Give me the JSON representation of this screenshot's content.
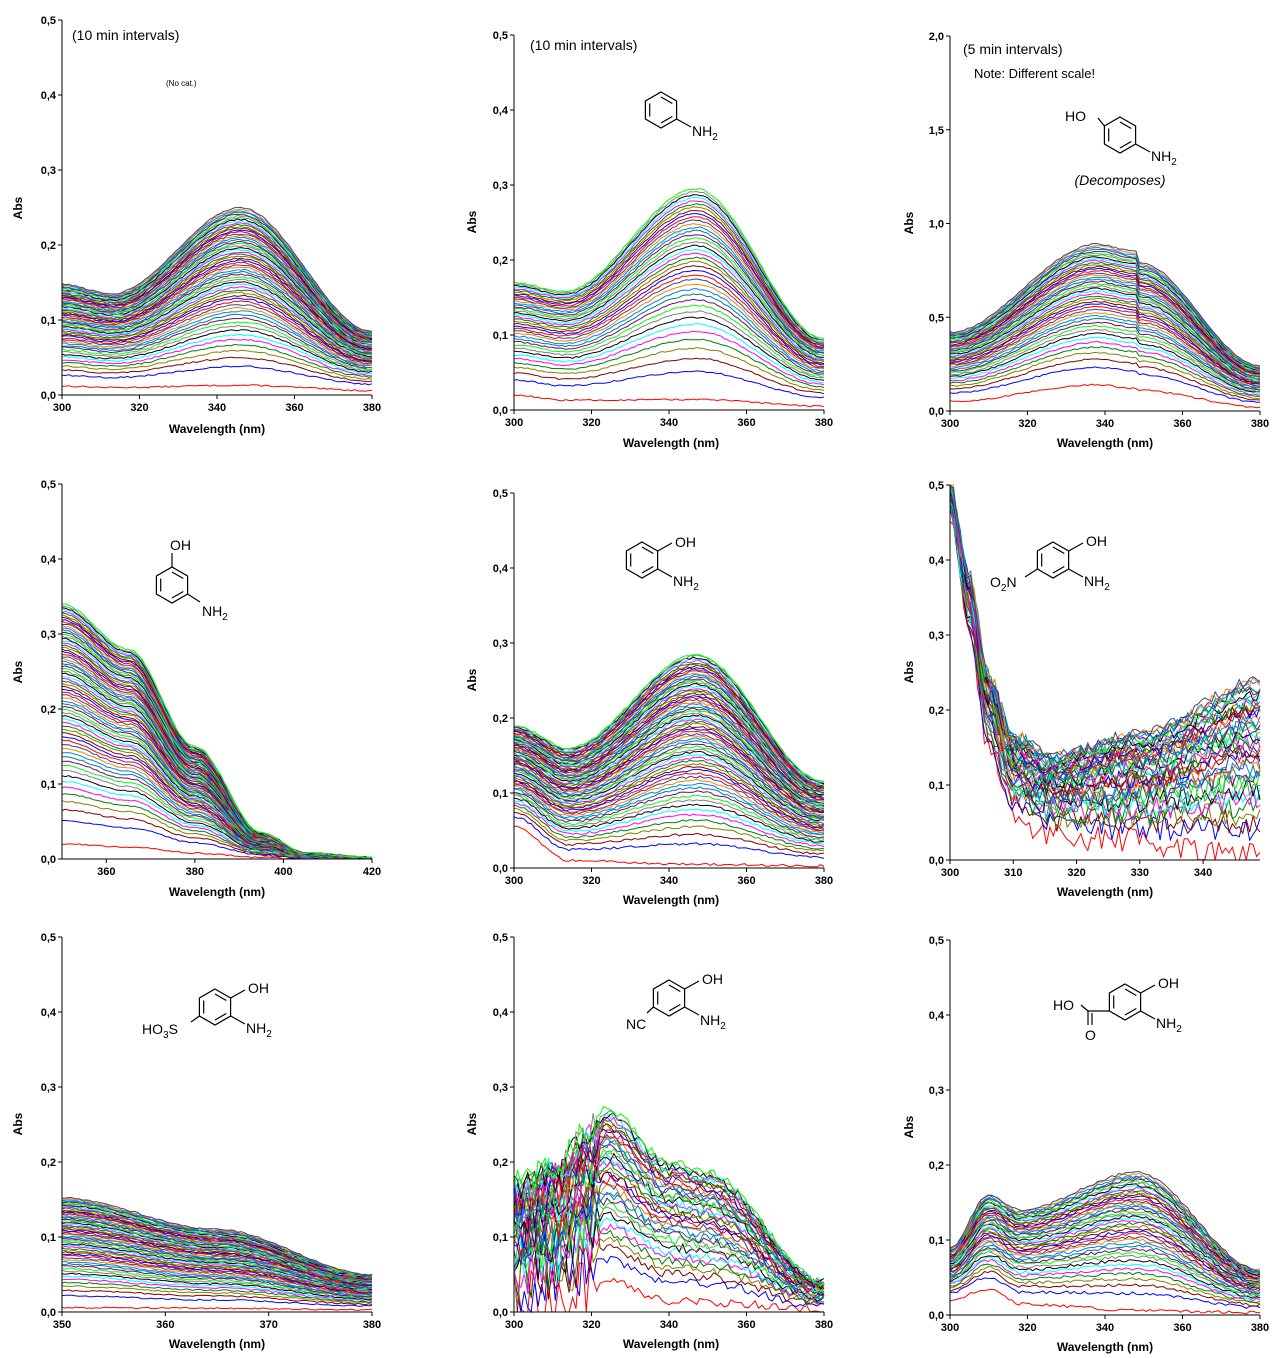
{
  "palette": [
    "#ff0000",
    "#0000ff",
    "#800000",
    "#808000",
    "#008000",
    "#ff00ff",
    "#00ffff",
    "#000000",
    "#808080",
    "#00ff00",
    "#800080",
    "#008080",
    "#0080ff",
    "#ff8000",
    "#404080"
  ],
  "chart_data": [
    {
      "type": "line",
      "panel": "spectra-0",
      "xlabel": "Wavelength (nm)",
      "ylabel": "Abs",
      "xlim": [
        300,
        380
      ],
      "ylim": [
        0,
        0.5
      ],
      "xticks": [
        300,
        320,
        340,
        360,
        380
      ],
      "xtick_labels": [
        "300",
        "320",
        "340",
        "360",
        "380"
      ],
      "yticks": [
        0,
        0.1,
        0.2,
        0.3,
        0.4,
        0.5
      ],
      "ytick_labels": [
        "0,0",
        "0,1",
        "0,2",
        "0,3",
        "0,4",
        "0,5"
      ],
      "notes": [
        "(10 min intervals)",
        "(No cat.)"
      ],
      "compound": "none",
      "series": {
        "count": 60,
        "shape": "peak",
        "x": [
          300,
          313,
          346,
          380
        ],
        "final": [
          0.148,
          0.135,
          0.25,
          0.085
        ],
        "first": [
          0.012,
          0.01,
          0.013,
          0.006
        ],
        "noise": 0.001
      }
    },
    {
      "type": "line",
      "panel": "spectra-1",
      "xlabel": "Wavelength (nm)",
      "ylabel": "Abs",
      "xlim": [
        300,
        380
      ],
      "ylim": [
        0,
        0.5
      ],
      "xticks": [
        300,
        320,
        340,
        360,
        380
      ],
      "xtick_labels": [
        "300",
        "320",
        "340",
        "360",
        "380"
      ],
      "yticks": [
        0,
        0.1,
        0.2,
        0.3,
        0.4,
        0.5
      ],
      "ytick_labels": [
        "0,0",
        "0,1",
        "0,2",
        "0,3",
        "0,4",
        "0,5"
      ],
      "notes": [
        "(10 min intervals)"
      ],
      "compound": "aniline",
      "series": {
        "count": 40,
        "shape": "peak",
        "x": [
          300,
          313,
          347,
          380
        ],
        "final": [
          0.17,
          0.158,
          0.295,
          0.095
        ],
        "first": [
          0.02,
          0.013,
          0.014,
          0.005
        ],
        "noise": 0.001
      }
    },
    {
      "type": "line",
      "panel": "spectra-2",
      "xlabel": "Wavelength (nm)",
      "ylabel": "Abs",
      "xlim": [
        300,
        380
      ],
      "ylim": [
        0,
        2.0
      ],
      "xticks": [
        300,
        320,
        340,
        360,
        380
      ],
      "xtick_labels": [
        "300",
        "320",
        "340",
        "360",
        "380"
      ],
      "yticks": [
        0,
        0.5,
        1.0,
        1.5,
        2.0
      ],
      "ytick_labels": [
        "0,0",
        "0,5",
        "1,0",
        "1,5",
        "2,0"
      ],
      "notes": [
        "(5 min intervals)",
        "Note: Different scale!"
      ],
      "compound": "4-aminophenol",
      "compound_label": "(Decomposes)",
      "series": {
        "count": 45,
        "shape": "peak",
        "x": [
          300,
          338,
          348,
          349,
          380
        ],
        "final": [
          0.42,
          0.89,
          0.85,
          0.79,
          0.24
        ],
        "first": [
          0.05,
          0.14,
          0.12,
          0.11,
          0.02
        ],
        "noise": 0.004
      }
    },
    {
      "type": "line",
      "panel": "spectra-3",
      "xlabel": "Wavelength (nm)",
      "ylabel": "Abs",
      "xlim": [
        350,
        420
      ],
      "ylim": [
        0,
        0.5
      ],
      "xticks": [
        360,
        380,
        400,
        420
      ],
      "xtick_labels": [
        "360",
        "380",
        "400",
        "420"
      ],
      "yticks": [
        0,
        0.1,
        0.2,
        0.3,
        0.4,
        0.5
      ],
      "ytick_labels": [
        "0,0",
        "0,1",
        "0,2",
        "0,3",
        "0,4",
        "0,5"
      ],
      "notes": [],
      "compound": "3-aminophenol",
      "series": {
        "count": 70,
        "shape": "decay",
        "x": [
          350,
          365,
          380,
          395,
          405,
          420
        ],
        "final": [
          0.34,
          0.28,
          0.15,
          0.035,
          0.008,
          0.002
        ],
        "first": [
          0.02,
          0.016,
          0.008,
          0.002,
          0.0,
          0.0
        ],
        "noise": 0.001
      }
    },
    {
      "type": "line",
      "panel": "spectra-4",
      "xlabel": "Wavelength (nm)",
      "ylabel": "Abs",
      "xlim": [
        300,
        380
      ],
      "ylim": [
        0,
        0.5
      ],
      "xticks": [
        300,
        320,
        340,
        360,
        380
      ],
      "xtick_labels": [
        "300",
        "320",
        "340",
        "360",
        "380"
      ],
      "yticks": [
        0,
        0.1,
        0.2,
        0.3,
        0.4,
        0.5
      ],
      "ytick_labels": [
        "0,0",
        "0,1",
        "0,2",
        "0,3",
        "0,4",
        "0,5"
      ],
      "notes": [],
      "compound": "2-aminophenol",
      "series": {
        "count": 70,
        "shape": "peak",
        "x": [
          300,
          314,
          347,
          380
        ],
        "final": [
          0.19,
          0.16,
          0.285,
          0.115
        ],
        "first": [
          0.055,
          0.01,
          0.005,
          0.003
        ],
        "noise": 0.0015
      }
    },
    {
      "type": "line",
      "panel": "spectra-5",
      "xlabel": "Wavelength (nm)",
      "ylabel": "Abs",
      "xlim": [
        300,
        349
      ],
      "ylim": [
        0,
        0.5
      ],
      "xticks": [
        300,
        310,
        320,
        330,
        340
      ],
      "xtick_labels": [
        "300",
        "310",
        "320",
        "330",
        "340"
      ],
      "yticks": [
        0,
        0.1,
        0.2,
        0.3,
        0.4,
        0.5
      ],
      "ytick_labels": [
        "0,0",
        "0,1",
        "0,2",
        "0,3",
        "0,4",
        "0,5"
      ],
      "notes": [],
      "compound": "2-amino-4-nitrophenol",
      "series": {
        "count": 45,
        "shape": "dip",
        "x": [
          300,
          303,
          306,
          310,
          316,
          330,
          349
        ],
        "final": [
          0.5,
          0.38,
          0.25,
          0.165,
          0.14,
          0.17,
          0.24
        ],
        "first": [
          0.46,
          0.3,
          0.15,
          0.06,
          0.035,
          0.025,
          0.01
        ],
        "noise": 0.012
      }
    },
    {
      "type": "line",
      "panel": "spectra-6",
      "xlabel": "Wavelength (nm)",
      "ylabel": "Abs",
      "xlim": [
        350,
        380
      ],
      "ylim": [
        0,
        0.5
      ],
      "xticks": [
        350,
        360,
        370,
        380
      ],
      "xtick_labels": [
        "350",
        "360",
        "370",
        "380"
      ],
      "yticks": [
        0,
        0.1,
        0.2,
        0.3,
        0.4,
        0.5
      ],
      "ytick_labels": [
        "0,0",
        "0,1",
        "0,2",
        "0,3",
        "0,4",
        "0,5"
      ],
      "notes": [],
      "compound": "3-amino-4-hydroxybenzenesulfonic acid",
      "series": {
        "count": 60,
        "shape": "slope",
        "x": [
          350,
          365,
          380
        ],
        "final": [
          0.152,
          0.11,
          0.05
        ],
        "first": [
          0.006,
          0.005,
          0.003
        ],
        "noise": 0.001
      }
    },
    {
      "type": "line",
      "panel": "spectra-7",
      "xlabel": "Wavelength (nm)",
      "ylabel": "Abs",
      "xlim": [
        300,
        380
      ],
      "ylim": [
        0,
        0.5
      ],
      "xticks": [
        300,
        320,
        340,
        360,
        380
      ],
      "xtick_labels": [
        "300",
        "320",
        "340",
        "360",
        "380"
      ],
      "yticks": [
        0,
        0.1,
        0.2,
        0.3,
        0.4,
        0.5
      ],
      "ytick_labels": [
        "0,0",
        "0,1",
        "0,2",
        "0,3",
        "0,4",
        "0,5"
      ],
      "notes": [],
      "compound": "3-amino-4-hydroxybenzonitrile",
      "series": {
        "count": 40,
        "shape": "peak",
        "x": [
          300,
          312,
          318,
          324,
          340,
          350,
          380
        ],
        "final": [
          0.17,
          0.2,
          0.235,
          0.27,
          0.2,
          0.185,
          0.04
        ],
        "first": [
          0.01,
          0.015,
          0.03,
          0.04,
          0.015,
          0.013,
          0.004
        ],
        "noise": 0.006
      }
    },
    {
      "type": "line",
      "panel": "spectra-8",
      "xlabel": "Wavelength (nm)",
      "ylabel": "Abs",
      "xlim": [
        300,
        380
      ],
      "ylim": [
        0,
        0.5
      ],
      "xticks": [
        300,
        320,
        340,
        360,
        380
      ],
      "xtick_labels": [
        "300",
        "320",
        "340",
        "360",
        "380"
      ],
      "yticks": [
        0,
        0.1,
        0.2,
        0.3,
        0.4,
        0.5
      ],
      "ytick_labels": [
        "0,0",
        "0,1",
        "0,2",
        "0,3",
        "0,4",
        "0,5"
      ],
      "notes": [],
      "compound": "3-amino-4-hydroxybenzoic acid",
      "series": {
        "count": 45,
        "shape": "peak",
        "x": [
          300,
          310,
          318,
          348,
          380
        ],
        "final": [
          0.09,
          0.16,
          0.14,
          0.19,
          0.06
        ],
        "first": [
          0.02,
          0.035,
          0.015,
          0.006,
          0.003
        ],
        "noise": 0.002
      }
    }
  ],
  "chem": {
    "nh2_n": "NH",
    "nh2_sub": "2",
    "ho": "HO",
    "oh": "OH",
    "o2n_o": "O",
    "o2n_sub": "2",
    "o2n_n": "N",
    "ho3s_ho": "HO",
    "ho3s_sub": "3",
    "ho3s_s": "S",
    "cn": "NC",
    "cooh_ho": "HO",
    "cooh_o": "O"
  }
}
